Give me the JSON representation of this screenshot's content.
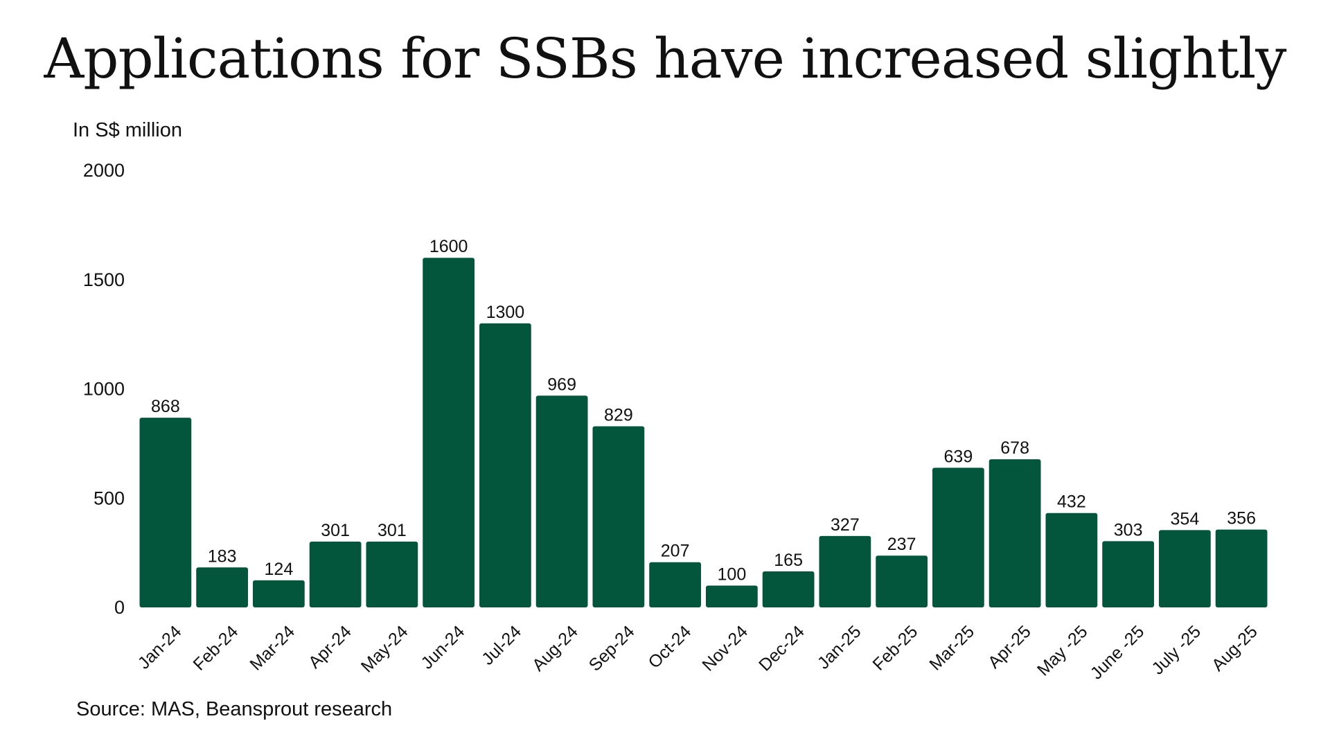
{
  "colors": {
    "bar": "#03553c",
    "text": "#111111",
    "background": "#ffffff"
  },
  "chart_data": {
    "type": "bar",
    "title": "Applications for SSBs have increased slightly",
    "ylabel": "In S$ million",
    "xlabel": "",
    "source": "Source: MAS, Beansprout research",
    "ylim": [
      0,
      2000
    ],
    "yticks": [
      0,
      500,
      1000,
      1500,
      2000
    ],
    "grid": false,
    "categories": [
      "Jan-24",
      "Feb-24",
      "Mar-24",
      "Apr-24",
      "May-24",
      "Jun-24",
      "Jul-24",
      "Aug-24",
      "Sep-24",
      "Oct-24",
      "Nov-24",
      "Dec-24",
      "Jan-25",
      "Feb-25",
      "Mar-25",
      "Apr-25",
      "May -25",
      "June -25",
      "July -25",
      "Aug-25"
    ],
    "values": [
      868,
      183,
      124,
      301,
      301,
      1600,
      1300,
      969,
      829,
      207,
      100,
      165,
      327,
      237,
      639,
      678,
      432,
      303,
      354,
      356
    ]
  }
}
